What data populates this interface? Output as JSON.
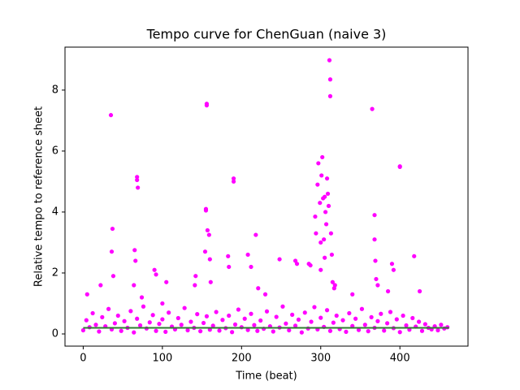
{
  "chart_data": {
    "type": "scatter",
    "title": "Tempo curve for ChenGuan (naive 3)",
    "x_label": "Time (beat)",
    "y_label": "Relative tempo to reference sheet",
    "xlim": [
      -23,
      486
    ],
    "ylim": [
      -0.4,
      9.41
    ],
    "xticks": [
      0,
      100,
      200,
      300,
      400
    ],
    "yticks": [
      0,
      2,
      4,
      6,
      8
    ],
    "grid": false,
    "series": [
      {
        "type": "scatter",
        "color": "#ff00ff",
        "x": [
          0,
          4,
          8,
          12,
          16,
          20,
          24,
          28,
          32,
          36,
          40,
          44,
          48,
          52,
          56,
          60,
          64,
          68,
          72,
          76,
          80,
          84,
          88,
          92,
          96,
          100,
          104,
          108,
          112,
          116,
          120,
          124,
          128,
          132,
          136,
          140,
          144,
          148,
          152,
          156,
          160,
          164,
          168,
          172,
          176,
          180,
          184,
          188,
          192,
          196,
          200,
          204,
          208,
          212,
          216,
          220,
          224,
          228,
          232,
          236,
          240,
          244,
          248,
          252,
          256,
          260,
          264,
          268,
          272,
          276,
          280,
          284,
          288,
          292,
          296,
          300,
          304,
          308,
          312,
          316,
          320,
          324,
          328,
          332,
          336,
          340,
          344,
          348,
          352,
          356,
          360,
          364,
          368,
          372,
          376,
          380,
          384,
          388,
          392,
          396,
          400,
          404,
          408,
          412,
          416,
          420,
          424,
          428,
          432,
          436,
          440,
          444,
          448,
          452,
          456,
          460,
          35,
          37,
          36,
          38,
          65,
          66,
          68,
          68,
          69,
          64,
          90,
          92,
          105,
          142,
          141,
          154,
          155,
          155,
          156,
          156,
          157,
          159,
          160,
          161,
          183,
          184,
          190,
          190,
          208,
          212,
          218,
          221,
          248,
          268,
          270,
          285,
          287,
          293,
          294,
          296,
          297,
          299,
          300,
          301,
          302,
          303,
          304,
          305,
          306,
          307,
          308,
          309,
          310,
          311,
          312,
          312,
          313,
          314,
          315,
          317,
          318,
          300,
          305,
          365,
          368,
          368,
          369,
          370,
          372,
          390,
          392,
          400,
          400,
          418,
          22,
          5,
          74,
          100,
          230,
          340,
          385,
          425
        ],
        "values": [
          0.12,
          0.45,
          0.22,
          0.68,
          0.3,
          0.08,
          0.55,
          0.25,
          0.82,
          0.15,
          0.35,
          0.6,
          0.1,
          0.42,
          0.2,
          0.75,
          0.05,
          0.5,
          0.28,
          0.9,
          0.18,
          0.38,
          0.62,
          0.1,
          0.33,
          0.48,
          0.07,
          0.7,
          0.24,
          0.15,
          0.52,
          0.3,
          0.85,
          0.12,
          0.4,
          0.2,
          0.65,
          0.09,
          0.36,
          0.58,
          0.14,
          0.27,
          0.72,
          0.11,
          0.46,
          0.19,
          0.6,
          0.06,
          0.31,
          0.8,
          0.22,
          0.5,
          0.13,
          0.66,
          0.29,
          0.1,
          0.44,
          0.17,
          0.74,
          0.25,
          0.08,
          0.56,
          0.21,
          0.9,
          0.34,
          0.12,
          0.63,
          0.27,
          0.47,
          0.05,
          0.7,
          0.18,
          0.4,
          0.88,
          0.15,
          0.53,
          0.23,
          0.78,
          0.1,
          0.37,
          0.6,
          0.16,
          0.45,
          0.07,
          0.68,
          0.26,
          0.5,
          0.13,
          0.82,
          0.3,
          0.09,
          0.55,
          0.2,
          0.42,
          0.66,
          0.11,
          0.35,
          0.72,
          0.19,
          0.48,
          0.06,
          0.6,
          0.28,
          0.14,
          0.52,
          0.24,
          0.4,
          0.1,
          0.32,
          0.2,
          0.15,
          0.25,
          0.12,
          0.3,
          0.18,
          0.22,
          7.18,
          3.45,
          2.7,
          1.9,
          2.75,
          2.4,
          5.15,
          5.05,
          4.8,
          1.6,
          2.1,
          1.95,
          1.7,
          1.9,
          1.6,
          2.7,
          4.1,
          4.05,
          7.5,
          7.55,
          3.4,
          3.25,
          2.45,
          1.7,
          2.55,
          2.2,
          5.1,
          5,
          2.6,
          2.2,
          3.25,
          1.5,
          2.45,
          2.4,
          2.3,
          2.3,
          2.25,
          3.85,
          3.3,
          4.9,
          5.6,
          4.3,
          3,
          5.2,
          5.8,
          4.45,
          3.1,
          4.5,
          4,
          3.6,
          5.1,
          4.6,
          4.2,
          8.98,
          8.35,
          7.8,
          3.3,
          2.6,
          1.7,
          1.5,
          1.6,
          2.1,
          2.5,
          7.38,
          3.9,
          3.1,
          2.4,
          1.8,
          1.6,
          2.3,
          2.1,
          5.5,
          5.48,
          2.55,
          1.6,
          1.3,
          1.2,
          1,
          1.3,
          1.3,
          1.4,
          1.4
        ]
      },
      {
        "type": "line",
        "color": "#2e7d32",
        "x": [
          0,
          462
        ],
        "values": [
          0.2,
          0.2
        ]
      }
    ]
  }
}
